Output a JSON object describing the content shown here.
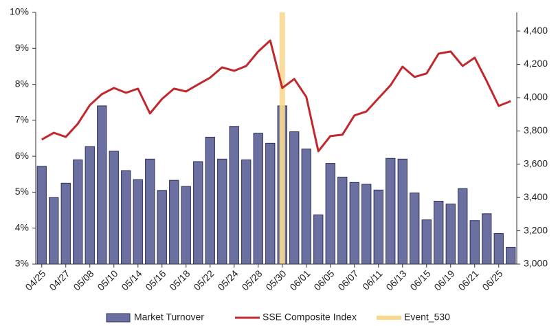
{
  "chart_data": {
    "type": "bar-line",
    "categories": [
      "04/25",
      null,
      "04/27",
      null,
      "05/08",
      null,
      "05/10",
      null,
      "05/14",
      null,
      "05/16",
      null,
      "05/18",
      null,
      "05/22",
      null,
      "05/24",
      null,
      "05/28",
      null,
      "05/30",
      null,
      "06/01",
      null,
      "06/05",
      null,
      "06/07",
      null,
      "06/11",
      null,
      "06/13",
      null,
      "06/15",
      null,
      "06/19",
      null,
      "06/21",
      null,
      "06/25",
      null
    ],
    "series": [
      {
        "name": "Market Turnover",
        "type": "bar",
        "color": "#6b70a0",
        "axis": "y",
        "values": [
          5.72,
          4.85,
          5.25,
          5.9,
          6.27,
          7.4,
          6.14,
          5.6,
          5.35,
          5.92,
          5.05,
          5.33,
          5.16,
          5.85,
          6.53,
          5.92,
          6.83,
          5.9,
          6.64,
          6.36,
          7.4,
          6.68,
          6.2,
          4.37,
          5.8,
          5.42,
          5.27,
          5.22,
          5.06,
          5.94,
          5.92,
          4.98,
          4.23,
          4.75,
          4.67,
          5.1,
          4.21,
          4.4,
          3.85,
          3.47
        ]
      },
      {
        "name": "SSE Composite Index",
        "type": "line",
        "color": "#c0282e",
        "axis": "y2",
        "values": [
          3748,
          3789,
          3764,
          3843,
          3955,
          4021,
          4058,
          4029,
          4054,
          3905,
          3992,
          4054,
          4037,
          4079,
          4120,
          4182,
          4161,
          4190,
          4277,
          4343,
          4058,
          4112,
          4004,
          3678,
          3769,
          3777,
          3893,
          3917,
          3996,
          4074,
          4186,
          4124,
          4145,
          4264,
          4277,
          4190,
          4240,
          4099,
          3950,
          3979
        ]
      }
    ],
    "event": {
      "name": "Event_530",
      "color": "#fad98f",
      "x": "05/30"
    },
    "ylim": [
      3,
      10
    ],
    "yticks": [
      {
        "value": 3,
        "label": "3%"
      },
      {
        "value": 4,
        "label": "4%"
      },
      {
        "value": 5,
        "label": "5%"
      },
      {
        "value": 6,
        "label": "6%"
      },
      {
        "value": 7,
        "label": "7%"
      },
      {
        "value": 8,
        "label": "8%"
      },
      {
        "value": 9,
        "label": "9%"
      },
      {
        "value": 10,
        "label": "10%"
      }
    ],
    "y2lim": [
      3000,
      4512
    ],
    "y2ticks": [
      {
        "value": 3000,
        "label": "3,000"
      },
      {
        "value": 3200,
        "label": "3,200"
      },
      {
        "value": 3400,
        "label": "3,400"
      },
      {
        "value": 3600,
        "label": "3,600"
      },
      {
        "value": 3800,
        "label": "3,800"
      },
      {
        "value": 4000,
        "label": "4,000"
      },
      {
        "value": 4200,
        "label": "4,200"
      },
      {
        "value": 4400,
        "label": "4,400"
      }
    ]
  }
}
